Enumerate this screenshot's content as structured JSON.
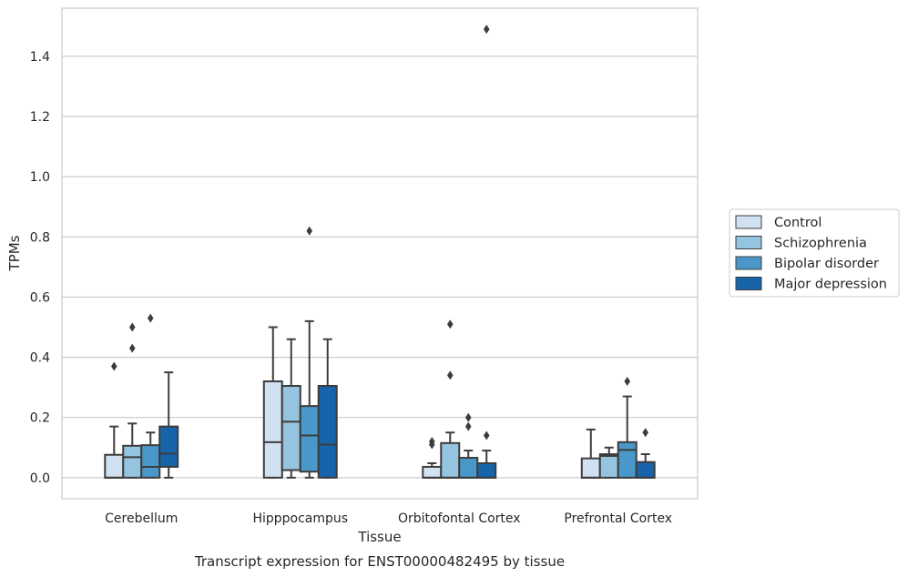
{
  "chart_data": {
    "type": "box",
    "caption": "Transcript expression for ENST00000482495 by tissue",
    "xlabel": "Tissue",
    "ylabel": "TPMs",
    "ylim": [
      -0.07,
      1.56
    ],
    "yticks": [
      0.0,
      0.2,
      0.4,
      0.6,
      0.8,
      1.0,
      1.2,
      1.4
    ],
    "ytick_labels": [
      "0.0",
      "0.2",
      "0.4",
      "0.6",
      "0.8",
      "1.0",
      "1.2",
      "1.4"
    ],
    "grid": "horizontal",
    "legend_position": "right",
    "categories": [
      "Cerebellum",
      "Hipppocampus",
      "Orbitofontal Cortex",
      "Prefrontal Cortex"
    ],
    "series": [
      {
        "name": "Control",
        "color": "#d0e1f2",
        "boxes": [
          {
            "whislo": 0.0,
            "q1": 0.0,
            "med": 0.0,
            "q3": 0.076,
            "whishi": 0.17,
            "fliers": [
              0.37
            ]
          },
          {
            "whislo": 0.0,
            "q1": 0.0,
            "med": 0.118,
            "q3": 0.32,
            "whishi": 0.5,
            "fliers": []
          },
          {
            "whislo": 0.0,
            "q1": 0.0,
            "med": 0.0,
            "q3": 0.036,
            "whishi": 0.048,
            "fliers": [
              0.11,
              0.12
            ]
          },
          {
            "whislo": 0.0,
            "q1": 0.0,
            "med": 0.0,
            "q3": 0.064,
            "whishi": 0.16,
            "fliers": []
          }
        ]
      },
      {
        "name": "Schizophrenia",
        "color": "#94c4df",
        "boxes": [
          {
            "whislo": 0.0,
            "q1": 0.0,
            "med": 0.068,
            "q3": 0.106,
            "whishi": 0.18,
            "fliers": [
              0.43,
              0.5
            ]
          },
          {
            "whislo": 0.0,
            "q1": 0.025,
            "med": 0.186,
            "q3": 0.305,
            "whishi": 0.46,
            "fliers": []
          },
          {
            "whislo": 0.0,
            "q1": 0.0,
            "med": 0.0,
            "q3": 0.115,
            "whishi": 0.15,
            "fliers": [
              0.34,
              0.51
            ]
          },
          {
            "whislo": 0.0,
            "q1": 0.0,
            "med": 0.072,
            "q3": 0.078,
            "whishi": 0.1,
            "fliers": []
          }
        ]
      },
      {
        "name": "Bipolar disorder",
        "color": "#4a98c9",
        "boxes": [
          {
            "whislo": 0.0,
            "q1": 0.0,
            "med": 0.036,
            "q3": 0.108,
            "whishi": 0.15,
            "fliers": [
              0.53
            ]
          },
          {
            "whislo": 0.0,
            "q1": 0.02,
            "med": 0.14,
            "q3": 0.238,
            "whishi": 0.52,
            "fliers": [
              0.82
            ]
          },
          {
            "whislo": 0.0,
            "q1": 0.0,
            "med": 0.0,
            "q3": 0.066,
            "whishi": 0.09,
            "fliers": [
              0.17,
              0.2
            ]
          },
          {
            "whislo": 0.0,
            "q1": 0.0,
            "med": 0.092,
            "q3": 0.118,
            "whishi": 0.27,
            "fliers": [
              0.32
            ]
          }
        ]
      },
      {
        "name": "Major depression",
        "color": "#1764ab",
        "boxes": [
          {
            "whislo": 0.0,
            "q1": 0.036,
            "med": 0.08,
            "q3": 0.17,
            "whishi": 0.35,
            "fliers": []
          },
          {
            "whislo": 0.0,
            "q1": 0.0,
            "med": 0.11,
            "q3": 0.305,
            "whishi": 0.46,
            "fliers": []
          },
          {
            "whislo": 0.0,
            "q1": 0.0,
            "med": 0.0,
            "q3": 0.048,
            "whishi": 0.09,
            "fliers": [
              0.14,
              1.49
            ]
          },
          {
            "whislo": 0.0,
            "q1": 0.0,
            "med": 0.0,
            "q3": 0.052,
            "whishi": 0.078,
            "fliers": [
              0.15
            ]
          }
        ]
      }
    ]
  }
}
